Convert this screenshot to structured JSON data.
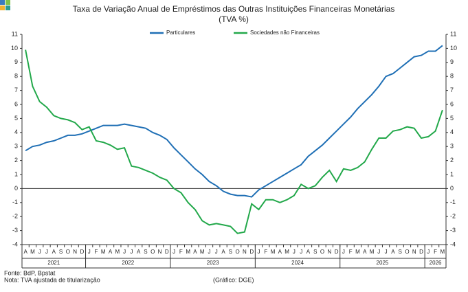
{
  "chart_data": {
    "type": "line",
    "title": "Taxa de Variação Anual de Empréstimos das Outras Instituições Financeiras Monetárias",
    "subtitle": "(TVA %)",
    "categories": [
      "A",
      "M",
      "J",
      "J",
      "A",
      "S",
      "O",
      "N",
      "D",
      "J",
      "F",
      "M",
      "A",
      "M",
      "J",
      "J",
      "A",
      "S",
      "O",
      "N",
      "D",
      "J",
      "F",
      "M",
      "A",
      "M",
      "J",
      "J",
      "A",
      "S",
      "O",
      "N",
      "D",
      "J",
      "F",
      "M",
      "A",
      "M",
      "J",
      "J",
      "A",
      "S",
      "O",
      "N",
      "D",
      "J",
      "F",
      "M",
      "A",
      "M",
      "J",
      "J",
      "A",
      "S",
      "O",
      "N",
      "D",
      "J",
      "F",
      "M"
    ],
    "years": [
      {
        "label": "2021",
        "months": 9
      },
      {
        "label": "2022",
        "months": 12
      },
      {
        "label": "2023",
        "months": 12
      },
      {
        "label": "2024",
        "months": 12
      },
      {
        "label": "2025",
        "months": 12
      },
      {
        "label": "2026",
        "months": 3
      }
    ],
    "series": [
      {
        "name": "Particulares",
        "color": "#1f6fb5",
        "values": [
          2.7,
          3.0,
          3.1,
          3.3,
          3.4,
          3.6,
          3.8,
          3.8,
          3.9,
          4.1,
          4.3,
          4.5,
          4.5,
          4.5,
          4.6,
          4.5,
          4.4,
          4.3,
          4.0,
          3.8,
          3.5,
          2.9,
          2.4,
          1.9,
          1.4,
          1.0,
          0.5,
          0.2,
          -0.2,
          -0.4,
          -0.5,
          -0.5,
          -0.6,
          -0.1,
          0.2,
          0.5,
          0.8,
          1.1,
          1.4,
          1.7,
          2.3,
          2.7,
          3.1,
          3.6,
          4.1,
          4.6,
          5.1,
          5.7,
          6.2,
          6.7,
          7.3,
          8.0,
          8.2,
          8.6,
          9.0,
          9.4,
          9.5,
          9.8,
          9.8,
          10.2
        ]
      },
      {
        "name": "Sociedades não Financeiras",
        "color": "#22a84a",
        "values": [
          9.9,
          7.3,
          6.2,
          5.8,
          5.2,
          5.0,
          4.9,
          4.7,
          4.2,
          4.4,
          3.4,
          3.3,
          3.1,
          2.8,
          2.9,
          1.6,
          1.5,
          1.3,
          1.1,
          0.8,
          0.6,
          0.0,
          -0.3,
          -1.0,
          -1.5,
          -2.3,
          -2.6,
          -2.5,
          -2.6,
          -2.7,
          -3.2,
          -3.1,
          -1.1,
          -1.5,
          -0.8,
          -0.8,
          -1.0,
          -0.8,
          -0.5,
          0.3,
          0.0,
          0.2,
          0.8,
          1.3,
          0.5,
          1.4,
          1.3,
          1.5,
          1.9,
          2.8,
          3.6,
          3.6,
          4.1,
          4.2,
          4.4,
          4.3,
          3.6,
          3.7,
          4.1,
          5.6
        ]
      }
    ],
    "ylim": [
      -4,
      11
    ],
    "yticks": [
      -4,
      -3,
      -2,
      -1,
      0,
      1,
      2,
      3,
      4,
      5,
      6,
      7,
      8,
      9,
      10,
      11
    ],
    "y2lim": [
      -4,
      11
    ],
    "y2ticks": [
      -4,
      -3,
      -2,
      -1,
      0,
      1,
      2,
      3,
      4,
      5,
      6,
      7,
      8,
      9,
      10,
      11
    ],
    "legend": "top",
    "source": "Fonte: BdP, Bpstat",
    "note": "Nota: TVA ajustada de titularização",
    "credit": "(Gráfico: DGE)"
  }
}
